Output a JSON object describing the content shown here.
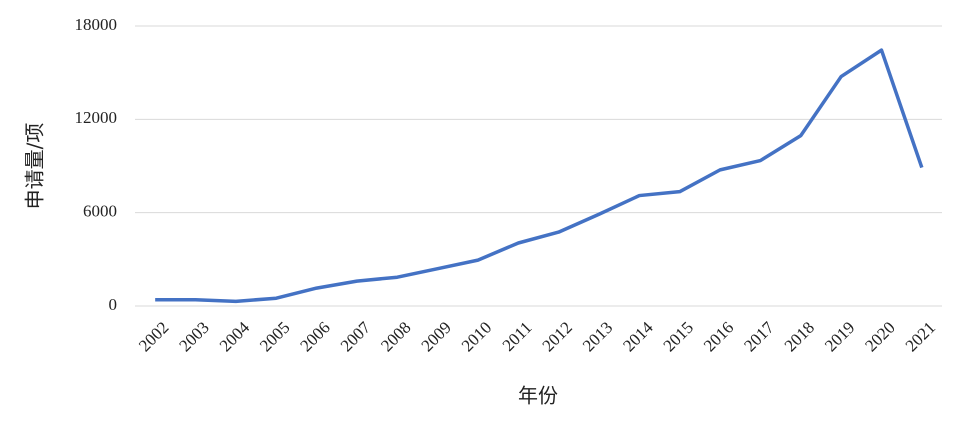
{
  "chart_data": {
    "type": "line",
    "x_label": "年份",
    "y_label": "申请量/项",
    "categories": [
      "2002",
      "2003",
      "2004",
      "2005",
      "2006",
      "2007",
      "2008",
      "2009",
      "2010",
      "2011",
      "2012",
      "2013",
      "2014",
      "2015",
      "2016",
      "2017",
      "2018",
      "2019",
      "2020",
      "2021"
    ],
    "values": [
      400,
      400,
      300,
      500,
      1150,
      1600,
      1850,
      2400,
      2950,
      4050,
      4750,
      5900,
      7100,
      7350,
      8750,
      9350,
      10950,
      14750,
      16450,
      8900
    ],
    "color": "#4472c4",
    "ylim": [
      0,
      18000
    ],
    "yticks": [
      0,
      6000,
      12000,
      18000
    ],
    "grid": true
  }
}
